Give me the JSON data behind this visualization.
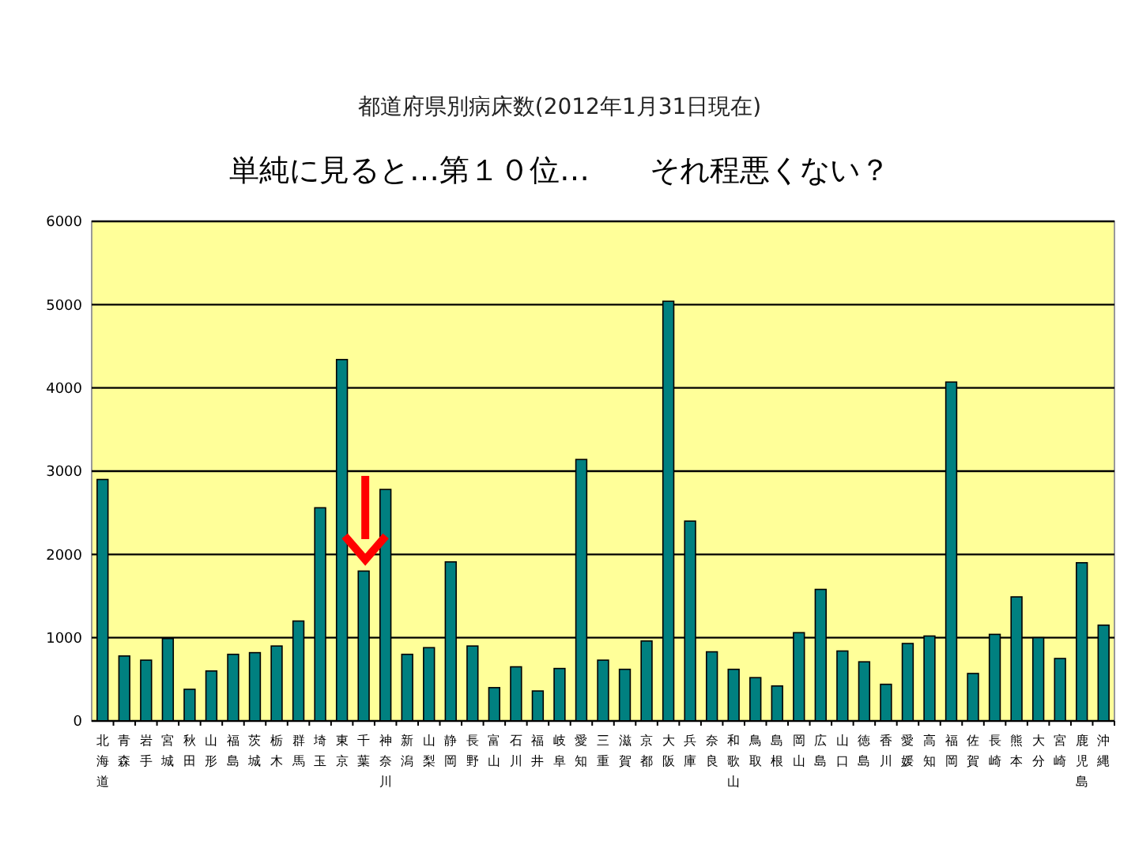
{
  "chart_data": {
    "type": "bar",
    "title": "都道府県別病床数(2012年1月31日現在)",
    "subtitle": "単純に見ると…第１０位…　　それ程悪くない？",
    "categories": [
      "北海道",
      "青森",
      "岩手",
      "宮城",
      "秋田",
      "山形",
      "福島",
      "茨城",
      "栃木",
      "群馬",
      "埼玉",
      "東京",
      "千葉",
      "神奈川",
      "新潟",
      "山梨",
      "静岡",
      "長野",
      "富山",
      "石川",
      "福井",
      "岐阜",
      "愛知",
      "三重",
      "滋賀",
      "京都",
      "大阪",
      "兵庫",
      "奈良",
      "和歌山",
      "鳥取",
      "島根",
      "岡山",
      "広島",
      "山口",
      "徳島",
      "香川",
      "愛媛",
      "高知",
      "福岡",
      "佐賀",
      "長崎",
      "熊本",
      "大分",
      "宮崎",
      "鹿児島",
      "沖縄"
    ],
    "values": [
      2900,
      780,
      730,
      990,
      380,
      600,
      800,
      820,
      900,
      1200,
      2560,
      4340,
      1800,
      2780,
      800,
      880,
      1910,
      900,
      400,
      650,
      360,
      630,
      3140,
      730,
      620,
      960,
      5040,
      2400,
      830,
      620,
      520,
      420,
      1060,
      1580,
      840,
      710,
      440,
      930,
      1020,
      4070,
      570,
      1040,
      1490,
      1000,
      750,
      1900,
      1150
    ],
    "color": "#008080",
    "ylim": [
      0,
      6000
    ],
    "yticks": [
      0,
      1000,
      2000,
      3000,
      4000,
      5000,
      6000
    ],
    "grid": "y"
  }
}
